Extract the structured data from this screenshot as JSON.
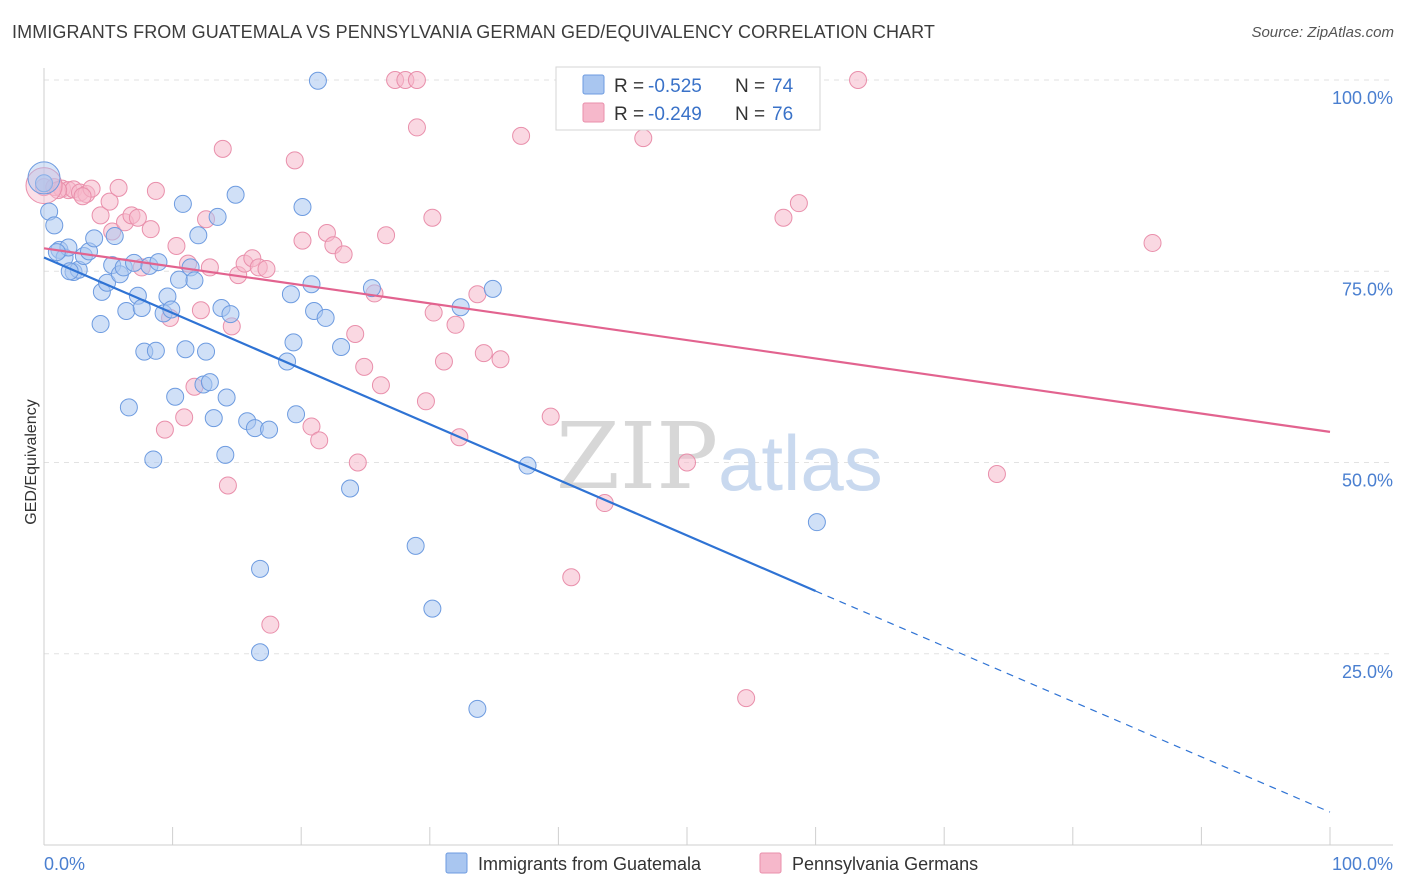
{
  "header": {
    "title": "IMMIGRANTS FROM GUATEMALA VS PENNSYLVANIA GERMAN GED/EQUIVALENCY CORRELATION CHART",
    "source": "Source: ZipAtlas.com"
  },
  "watermark": {
    "zip": "ZIP",
    "atlas": "atlas"
  },
  "legend_box": {
    "rows": [
      {
        "r_label": "R = ",
        "r_value": "-0.525",
        "n_label": "N = ",
        "n_value": "74",
        "color": "#a9c6f0"
      },
      {
        "r_label": "R = ",
        "r_value": "-0.249",
        "n_label": "N = ",
        "n_value": "76",
        "color": "#f6b8cb"
      }
    ]
  },
  "colors": {
    "blue_fill": "#a9c6f0",
    "blue_stroke": "#6d9be0",
    "blue_line": "#2f73d4",
    "pink_fill": "#f6b8cb",
    "pink_stroke": "#e98fab",
    "pink_line": "#e2638f",
    "grid": "#e2e2e2",
    "axis_text": "#4a7fd0"
  },
  "chart_data": {
    "type": "scatter",
    "title": "IMMIGRANTS FROM GUATEMALA VS PENNSYLVANIA GERMAN GED/EQUIVALENCY CORRELATION CHART",
    "xlabel": "",
    "ylabel": "GED/Equivalency",
    "xlim": [
      0,
      100
    ],
    "ylim": [
      0,
      102
    ],
    "x_tick_labels": [
      "0.0%",
      "100.0%"
    ],
    "y_ticks": [
      25,
      50,
      75,
      100
    ],
    "y_tick_labels": [
      "25.0%",
      "50.0%",
      "75.0%",
      "100.0%"
    ],
    "grid": true,
    "legend_position": "bottom",
    "series": [
      {
        "name": "Immigrants from Guatemala",
        "color": "#a9c6f0",
        "regression": {
          "x0": 0,
          "y0": 76.8,
          "x1": 60,
          "y1": 33.2,
          "dash_to_x": 100,
          "dash_to_y": 4.3
        },
        "points": [
          [
            0.0,
            86.5
          ],
          [
            0.4,
            82.8
          ],
          [
            0.8,
            81.0
          ],
          [
            1.2,
            77.8
          ],
          [
            1.6,
            76.8
          ],
          [
            1.9,
            78.1
          ],
          [
            2.3,
            74.9
          ],
          [
            2.7,
            75.2
          ],
          [
            3.1,
            77.0
          ],
          [
            3.5,
            77.6
          ],
          [
            3.9,
            79.3
          ],
          [
            4.4,
            68.1
          ],
          [
            4.5,
            72.3
          ],
          [
            4.9,
            73.5
          ],
          [
            5.3,
            75.8
          ],
          [
            5.5,
            79.6
          ],
          [
            5.9,
            74.6
          ],
          [
            6.2,
            75.5
          ],
          [
            6.4,
            69.8
          ],
          [
            6.6,
            57.2
          ],
          [
            7.0,
            76.1
          ],
          [
            7.3,
            71.8
          ],
          [
            7.6,
            70.2
          ],
          [
            7.8,
            64.5
          ],
          [
            8.2,
            75.7
          ],
          [
            8.5,
            50.4
          ],
          [
            8.7,
            64.6
          ],
          [
            8.9,
            76.2
          ],
          [
            9.3,
            69.5
          ],
          [
            9.6,
            71.7
          ],
          [
            9.9,
            70.0
          ],
          [
            10.2,
            58.6
          ],
          [
            10.5,
            73.9
          ],
          [
            10.8,
            83.8
          ],
          [
            11.0,
            64.8
          ],
          [
            11.4,
            75.5
          ],
          [
            11.7,
            73.8
          ],
          [
            12.0,
            79.7
          ],
          [
            12.4,
            60.2
          ],
          [
            12.6,
            64.5
          ],
          [
            12.9,
            60.5
          ],
          [
            13.2,
            55.8
          ],
          [
            13.5,
            82.1
          ],
          [
            13.8,
            70.2
          ],
          [
            14.1,
            51.0
          ],
          [
            14.2,
            58.5
          ],
          [
            14.5,
            69.4
          ],
          [
            14.9,
            85.0
          ],
          [
            15.8,
            55.4
          ],
          [
            16.4,
            54.5
          ],
          [
            16.8,
            36.1
          ],
          [
            16.8,
            25.2
          ],
          [
            17.5,
            54.3
          ],
          [
            18.9,
            63.2
          ],
          [
            19.2,
            72.0
          ],
          [
            19.4,
            65.7
          ],
          [
            19.6,
            56.3
          ],
          [
            20.1,
            83.4
          ],
          [
            20.8,
            73.3
          ],
          [
            21.0,
            69.8
          ],
          [
            21.3,
            99.9
          ],
          [
            21.9,
            68.9
          ],
          [
            23.1,
            65.1
          ],
          [
            23.8,
            46.6
          ],
          [
            25.5,
            72.8
          ],
          [
            28.9,
            39.1
          ],
          [
            30.2,
            30.9
          ],
          [
            32.4,
            70.3
          ],
          [
            33.7,
            17.8
          ],
          [
            34.9,
            72.7
          ],
          [
            37.6,
            49.6
          ],
          [
            60.1,
            42.2
          ],
          [
            1.0,
            77.5
          ],
          [
            2.0,
            75.0
          ]
        ]
      },
      {
        "name": "Pennsylvania Germans",
        "color": "#f6b8cb",
        "regression": {
          "x0": 0,
          "y0": 78.0,
          "x1": 100,
          "y1": 54.0
        },
        "points": [
          [
            0.0,
            86.0
          ],
          [
            0.8,
            86.0
          ],
          [
            1.4,
            85.8
          ],
          [
            1.9,
            85.6
          ],
          [
            2.3,
            85.7
          ],
          [
            2.8,
            85.3
          ],
          [
            3.3,
            85.1
          ],
          [
            3.7,
            85.8
          ],
          [
            4.4,
            82.3
          ],
          [
            5.1,
            84.1
          ],
          [
            5.3,
            80.2
          ],
          [
            5.8,
            85.9
          ],
          [
            6.3,
            81.4
          ],
          [
            6.8,
            82.3
          ],
          [
            7.3,
            82.0
          ],
          [
            7.6,
            75.5
          ],
          [
            8.3,
            80.5
          ],
          [
            8.7,
            85.5
          ],
          [
            9.4,
            54.3
          ],
          [
            9.8,
            68.9
          ],
          [
            10.3,
            78.3
          ],
          [
            10.9,
            55.9
          ],
          [
            11.2,
            76.0
          ],
          [
            11.7,
            59.9
          ],
          [
            12.2,
            69.9
          ],
          [
            12.6,
            81.8
          ],
          [
            12.9,
            75.5
          ],
          [
            13.9,
            91.0
          ],
          [
            14.3,
            47.0
          ],
          [
            14.6,
            67.8
          ],
          [
            15.1,
            74.5
          ],
          [
            15.6,
            76.0
          ],
          [
            16.2,
            76.7
          ],
          [
            16.7,
            75.5
          ],
          [
            17.3,
            75.3
          ],
          [
            17.6,
            28.8
          ],
          [
            19.5,
            89.5
          ],
          [
            20.1,
            79.0
          ],
          [
            20.8,
            54.7
          ],
          [
            21.4,
            52.9
          ],
          [
            22.0,
            80.0
          ],
          [
            22.5,
            78.4
          ],
          [
            23.3,
            77.2
          ],
          [
            24.2,
            66.8
          ],
          [
            24.4,
            50.0
          ],
          [
            24.9,
            62.5
          ],
          [
            25.7,
            72.1
          ],
          [
            26.2,
            60.1
          ],
          [
            26.6,
            79.7
          ],
          [
            27.3,
            100.0
          ],
          [
            28.1,
            100.0
          ],
          [
            29.0,
            100.0
          ],
          [
            29.0,
            93.8
          ],
          [
            29.7,
            58.0
          ],
          [
            30.2,
            82.0
          ],
          [
            30.3,
            69.6
          ],
          [
            31.1,
            63.2
          ],
          [
            32.0,
            68.0
          ],
          [
            32.3,
            53.3
          ],
          [
            33.7,
            72.0
          ],
          [
            34.2,
            64.3
          ],
          [
            35.5,
            63.5
          ],
          [
            37.1,
            92.7
          ],
          [
            39.4,
            56.0
          ],
          [
            41.0,
            35.0
          ],
          [
            43.6,
            44.7
          ],
          [
            46.6,
            92.4
          ],
          [
            50.0,
            50.0
          ],
          [
            54.6,
            19.2
          ],
          [
            57.5,
            82.0
          ],
          [
            58.7,
            83.9
          ],
          [
            63.3,
            100.0
          ],
          [
            74.1,
            48.5
          ],
          [
            86.2,
            78.7
          ],
          [
            1.1,
            85.6
          ],
          [
            3.0,
            84.8
          ]
        ]
      }
    ]
  },
  "bottom_legend": {
    "items": [
      {
        "label": "Immigrants from Guatemala",
        "color": "#a9c6f0"
      },
      {
        "label": "Pennsylvania Germans",
        "color": "#f6b8cb"
      }
    ]
  }
}
